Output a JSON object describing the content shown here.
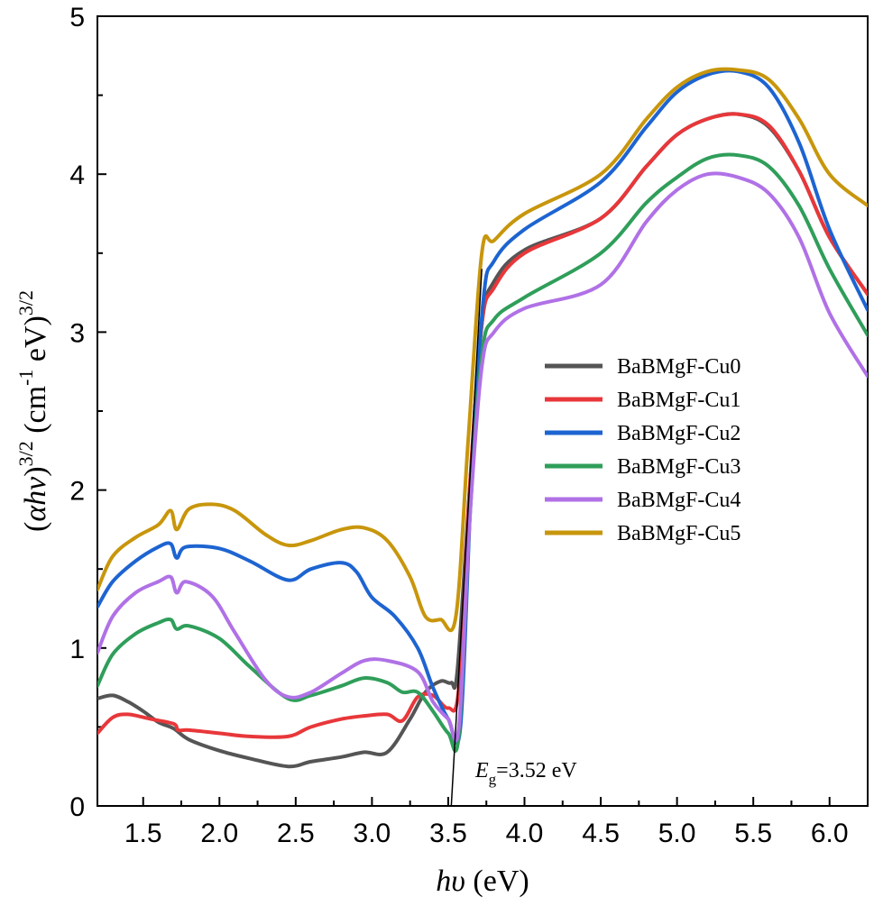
{
  "chart_data": {
    "type": "line",
    "xlabel_italic": "hυ",
    "xlabel_unit": " (eV)",
    "ylabel_parts": {
      "open": "(",
      "var": "αhν",
      "close": ")",
      "exp": "3/2",
      "unit_open": " (cm",
      "unit_exp": "-1",
      "unit_mid": " eV)",
      "unit_exp2": "3/2"
    },
    "xlim": [
      1.2,
      6.25
    ],
    "ylim": [
      0,
      5
    ],
    "xticks": [
      1.5,
      2.0,
      2.5,
      3.0,
      3.5,
      4.0,
      4.5,
      5.0,
      5.5,
      6.0
    ],
    "xtick_labels": [
      "1.5",
      "2.0",
      "2.5",
      "3.0",
      "3.5",
      "4.0",
      "4.5",
      "5.0",
      "5.5",
      "6.0"
    ],
    "yticks": [
      0,
      1,
      2,
      3,
      4,
      5
    ],
    "ytick_labels": [
      "0",
      "1",
      "2",
      "3",
      "4",
      "5"
    ],
    "annotation": {
      "E": "E",
      "sub": "g",
      "rest": "=3.52 eV",
      "tangent": [
        [
          3.52,
          0
        ],
        [
          3.72,
          3.4
        ]
      ]
    },
    "series": [
      {
        "name": "BaBMgF-Cu0",
        "color": "#555555",
        "points": [
          [
            1.2,
            0.68
          ],
          [
            1.3,
            0.7
          ],
          [
            1.4,
            0.66
          ],
          [
            1.5,
            0.6
          ],
          [
            1.6,
            0.53
          ],
          [
            1.7,
            0.49
          ],
          [
            1.8,
            0.42
          ],
          [
            2.0,
            0.35
          ],
          [
            2.2,
            0.3
          ],
          [
            2.45,
            0.25
          ],
          [
            2.6,
            0.28
          ],
          [
            2.8,
            0.31
          ],
          [
            2.95,
            0.34
          ],
          [
            3.1,
            0.34
          ],
          [
            3.25,
            0.55
          ],
          [
            3.35,
            0.72
          ],
          [
            3.45,
            0.79
          ],
          [
            3.52,
            0.78
          ],
          [
            3.56,
            0.86
          ],
          [
            3.64,
            2.0
          ],
          [
            3.72,
            3.05
          ],
          [
            3.8,
            3.32
          ],
          [
            4.0,
            3.52
          ],
          [
            4.5,
            3.72
          ],
          [
            4.8,
            4.05
          ],
          [
            5.0,
            4.25
          ],
          [
            5.2,
            4.35
          ],
          [
            5.4,
            4.38
          ],
          [
            5.6,
            4.3
          ],
          [
            5.8,
            4.02
          ],
          [
            6.0,
            3.6
          ],
          [
            6.25,
            3.24
          ]
        ]
      },
      {
        "name": "BaBMgF-Cu1",
        "color": "#e8373a",
        "points": [
          [
            1.2,
            0.46
          ],
          [
            1.3,
            0.56
          ],
          [
            1.4,
            0.58
          ],
          [
            1.55,
            0.55
          ],
          [
            1.7,
            0.52
          ],
          [
            1.73,
            0.48
          ],
          [
            1.8,
            0.48
          ],
          [
            2.0,
            0.46
          ],
          [
            2.2,
            0.44
          ],
          [
            2.45,
            0.44
          ],
          [
            2.6,
            0.5
          ],
          [
            2.8,
            0.55
          ],
          [
            2.95,
            0.57
          ],
          [
            3.1,
            0.58
          ],
          [
            3.2,
            0.54
          ],
          [
            3.3,
            0.69
          ],
          [
            3.4,
            0.7
          ],
          [
            3.5,
            0.62
          ],
          [
            3.57,
            0.75
          ],
          [
            3.64,
            2.0
          ],
          [
            3.72,
            3.05
          ],
          [
            3.8,
            3.28
          ],
          [
            4.0,
            3.5
          ],
          [
            4.5,
            3.72
          ],
          [
            4.8,
            4.05
          ],
          [
            5.0,
            4.25
          ],
          [
            5.2,
            4.35
          ],
          [
            5.4,
            4.38
          ],
          [
            5.6,
            4.31
          ],
          [
            5.8,
            4.02
          ],
          [
            6.0,
            3.6
          ],
          [
            6.25,
            3.24
          ]
        ]
      },
      {
        "name": "BaBMgF-Cu2",
        "color": "#1d64d1",
        "points": [
          [
            1.2,
            1.26
          ],
          [
            1.3,
            1.42
          ],
          [
            1.45,
            1.55
          ],
          [
            1.6,
            1.64
          ],
          [
            1.68,
            1.66
          ],
          [
            1.72,
            1.57
          ],
          [
            1.78,
            1.64
          ],
          [
            2.0,
            1.63
          ],
          [
            2.2,
            1.55
          ],
          [
            2.45,
            1.43
          ],
          [
            2.6,
            1.5
          ],
          [
            2.8,
            1.54
          ],
          [
            2.9,
            1.48
          ],
          [
            3.0,
            1.32
          ],
          [
            3.15,
            1.2
          ],
          [
            3.3,
            1.0
          ],
          [
            3.4,
            0.75
          ],
          [
            3.5,
            0.55
          ],
          [
            3.58,
            0.5
          ],
          [
            3.65,
            2.0
          ],
          [
            3.73,
            3.2
          ],
          [
            3.8,
            3.45
          ],
          [
            4.0,
            3.65
          ],
          [
            4.5,
            3.95
          ],
          [
            4.8,
            4.3
          ],
          [
            5.0,
            4.52
          ],
          [
            5.2,
            4.63
          ],
          [
            5.4,
            4.65
          ],
          [
            5.6,
            4.55
          ],
          [
            5.8,
            4.2
          ],
          [
            6.0,
            3.65
          ],
          [
            6.25,
            3.14
          ]
        ]
      },
      {
        "name": "BaBMgF-Cu3",
        "color": "#2f9e5a",
        "points": [
          [
            1.2,
            0.76
          ],
          [
            1.3,
            0.96
          ],
          [
            1.45,
            1.09
          ],
          [
            1.6,
            1.16
          ],
          [
            1.68,
            1.18
          ],
          [
            1.72,
            1.12
          ],
          [
            1.8,
            1.14
          ],
          [
            2.0,
            1.06
          ],
          [
            2.2,
            0.88
          ],
          [
            2.45,
            0.68
          ],
          [
            2.6,
            0.7
          ],
          [
            2.8,
            0.76
          ],
          [
            2.95,
            0.81
          ],
          [
            3.1,
            0.78
          ],
          [
            3.2,
            0.72
          ],
          [
            3.3,
            0.72
          ],
          [
            3.4,
            0.6
          ],
          [
            3.5,
            0.46
          ],
          [
            3.57,
            0.45
          ],
          [
            3.64,
            1.8
          ],
          [
            3.72,
            2.85
          ],
          [
            3.8,
            3.08
          ],
          [
            4.0,
            3.22
          ],
          [
            4.5,
            3.5
          ],
          [
            4.8,
            3.82
          ],
          [
            5.0,
            3.98
          ],
          [
            5.2,
            4.1
          ],
          [
            5.4,
            4.12
          ],
          [
            5.6,
            4.05
          ],
          [
            5.8,
            3.8
          ],
          [
            6.0,
            3.4
          ],
          [
            6.25,
            2.98
          ]
        ]
      },
      {
        "name": "BaBMgF-Cu4",
        "color": "#b071e6",
        "points": [
          [
            1.2,
            0.97
          ],
          [
            1.3,
            1.2
          ],
          [
            1.45,
            1.35
          ],
          [
            1.6,
            1.42
          ],
          [
            1.68,
            1.45
          ],
          [
            1.72,
            1.35
          ],
          [
            1.78,
            1.42
          ],
          [
            1.95,
            1.33
          ],
          [
            2.1,
            1.1
          ],
          [
            2.3,
            0.8
          ],
          [
            2.45,
            0.69
          ],
          [
            2.6,
            0.72
          ],
          [
            2.8,
            0.84
          ],
          [
            2.95,
            0.92
          ],
          [
            3.1,
            0.92
          ],
          [
            3.3,
            0.85
          ],
          [
            3.4,
            0.66
          ],
          [
            3.5,
            0.55
          ],
          [
            3.57,
            0.5
          ],
          [
            3.64,
            1.8
          ],
          [
            3.72,
            2.78
          ],
          [
            3.8,
            3.0
          ],
          [
            4.0,
            3.15
          ],
          [
            4.5,
            3.3
          ],
          [
            4.8,
            3.7
          ],
          [
            5.0,
            3.9
          ],
          [
            5.2,
            4.0
          ],
          [
            5.4,
            3.98
          ],
          [
            5.6,
            3.88
          ],
          [
            5.8,
            3.6
          ],
          [
            6.0,
            3.12
          ],
          [
            6.25,
            2.72
          ]
        ]
      },
      {
        "name": "BaBMgF-Cu5",
        "color": "#c8960c",
        "points": [
          [
            1.2,
            1.37
          ],
          [
            1.3,
            1.58
          ],
          [
            1.45,
            1.7
          ],
          [
            1.6,
            1.78
          ],
          [
            1.68,
            1.87
          ],
          [
            1.72,
            1.75
          ],
          [
            1.8,
            1.88
          ],
          [
            1.95,
            1.91
          ],
          [
            2.1,
            1.87
          ],
          [
            2.3,
            1.72
          ],
          [
            2.45,
            1.65
          ],
          [
            2.6,
            1.68
          ],
          [
            2.8,
            1.75
          ],
          [
            2.95,
            1.76
          ],
          [
            3.1,
            1.68
          ],
          [
            3.25,
            1.45
          ],
          [
            3.35,
            1.2
          ],
          [
            3.45,
            1.18
          ],
          [
            3.55,
            1.2
          ],
          [
            3.63,
            2.3
          ],
          [
            3.72,
            3.5
          ],
          [
            3.8,
            3.58
          ],
          [
            4.0,
            3.75
          ],
          [
            4.5,
            4.0
          ],
          [
            4.8,
            4.35
          ],
          [
            5.0,
            4.55
          ],
          [
            5.2,
            4.65
          ],
          [
            5.4,
            4.66
          ],
          [
            5.6,
            4.6
          ],
          [
            5.8,
            4.35
          ],
          [
            6.0,
            4.0
          ],
          [
            6.25,
            3.8
          ]
        ]
      }
    ]
  }
}
